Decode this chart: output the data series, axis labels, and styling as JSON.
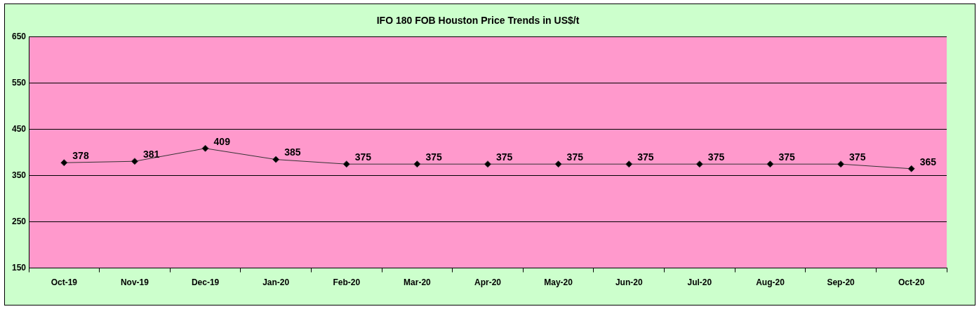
{
  "chart_data": {
    "type": "line",
    "title": "IFO 180 FOB Houston Price Trends in US$/t",
    "categories": [
      "Oct-19",
      "Nov-19",
      "Dec-19",
      "Jan-20",
      "Feb-20",
      "Mar-20",
      "Apr-20",
      "May-20",
      "Jun-20",
      "Jul-20",
      "Aug-20",
      "Sep-20",
      "Oct-20"
    ],
    "series": [
      {
        "color": "#333333",
        "values": [
          378,
          381,
          409,
          385,
          375,
          375,
          375,
          375,
          375,
          375,
          375,
          375,
          365
        ]
      }
    ],
    "ylim": [
      150,
      650
    ],
    "yticks": [
      150,
      250,
      350,
      450,
      550,
      650
    ],
    "grid": "y",
    "legend": false,
    "marker": "diamond",
    "line_style": "solid",
    "data_labels": true
  }
}
